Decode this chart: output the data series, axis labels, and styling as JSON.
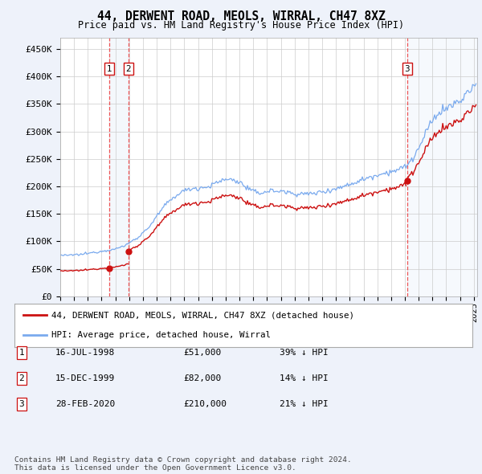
{
  "title": "44, DERWENT ROAD, MEOLS, WIRRAL, CH47 8XZ",
  "subtitle": "Price paid vs. HM Land Registry's House Price Index (HPI)",
  "ylabel_ticks": [
    "£0",
    "£50K",
    "£100K",
    "£150K",
    "£200K",
    "£250K",
    "£300K",
    "£350K",
    "£400K",
    "£450K"
  ],
  "ytick_values": [
    0,
    50000,
    100000,
    150000,
    200000,
    250000,
    300000,
    350000,
    400000,
    450000
  ],
  "ylim": [
    0,
    470000
  ],
  "hpi_color": "#7aaaee",
  "price_color": "#cc1111",
  "vline_color": "#ee4444",
  "sale_marker_color": "#cc1111",
  "transactions": [
    {
      "date": "1998-07-16",
      "price": 51000,
      "label": "1"
    },
    {
      "date": "1999-12-15",
      "price": 82000,
      "label": "2"
    },
    {
      "date": "2020-02-28",
      "price": 210000,
      "label": "3"
    }
  ],
  "legend_property_label": "44, DERWENT ROAD, MEOLS, WIRRAL, CH47 8XZ (detached house)",
  "legend_hpi_label": "HPI: Average price, detached house, Wirral",
  "table_rows": [
    {
      "num": "1",
      "date": "16-JUL-1998",
      "price": "£51,000",
      "pct": "39% ↓ HPI"
    },
    {
      "num": "2",
      "date": "15-DEC-1999",
      "price": "£82,000",
      "pct": "14% ↓ HPI"
    },
    {
      "num": "3",
      "date": "28-FEB-2020",
      "price": "£210,000",
      "pct": "21% ↓ HPI"
    }
  ],
  "footnote": "Contains HM Land Registry data © Crown copyright and database right 2024.\nThis data is licensed under the Open Government Licence v3.0.",
  "background_color": "#eef2fa",
  "plot_bg_color": "#ffffff",
  "shade_color": "#dde8f8",
  "x_start_year": 1995,
  "x_end_year": 2025,
  "hpi_anchors": {
    "1995.0": 75000,
    "1995.5": 74000,
    "1996.0": 75500,
    "1996.5": 76000,
    "1997.0": 78000,
    "1997.5": 80000,
    "1998.0": 82000,
    "1998.5": 84000,
    "1999.0": 86000,
    "1999.5": 90000,
    "2000.0": 97000,
    "2000.5": 105000,
    "2001.0": 115000,
    "2001.5": 128000,
    "2002.0": 145000,
    "2002.5": 162000,
    "2003.0": 175000,
    "2003.5": 185000,
    "2004.0": 192000,
    "2004.5": 196000,
    "2005.0": 197000,
    "2005.5": 198000,
    "2006.0": 202000,
    "2006.5": 208000,
    "2007.0": 213000,
    "2007.5": 212000,
    "2008.0": 208000,
    "2008.5": 198000,
    "2009.0": 190000,
    "2009.5": 188000,
    "2010.0": 191000,
    "2010.5": 192000,
    "2011.0": 191000,
    "2011.5": 189000,
    "2012.0": 187000,
    "2012.5": 186000,
    "2013.0": 186000,
    "2013.5": 188000,
    "2014.0": 190000,
    "2014.5": 193000,
    "2015.0": 196000,
    "2015.5": 199000,
    "2016.0": 204000,
    "2016.5": 208000,
    "2017.0": 213000,
    "2017.5": 217000,
    "2018.0": 221000,
    "2018.5": 224000,
    "2019.0": 227000,
    "2019.5": 230000,
    "2020.0": 235000,
    "2020.5": 248000,
    "2021.0": 268000,
    "2021.5": 295000,
    "2022.0": 320000,
    "2022.5": 335000,
    "2023.0": 342000,
    "2023.5": 348000,
    "2024.0": 355000,
    "2024.5": 368000,
    "2025.0": 382000
  }
}
